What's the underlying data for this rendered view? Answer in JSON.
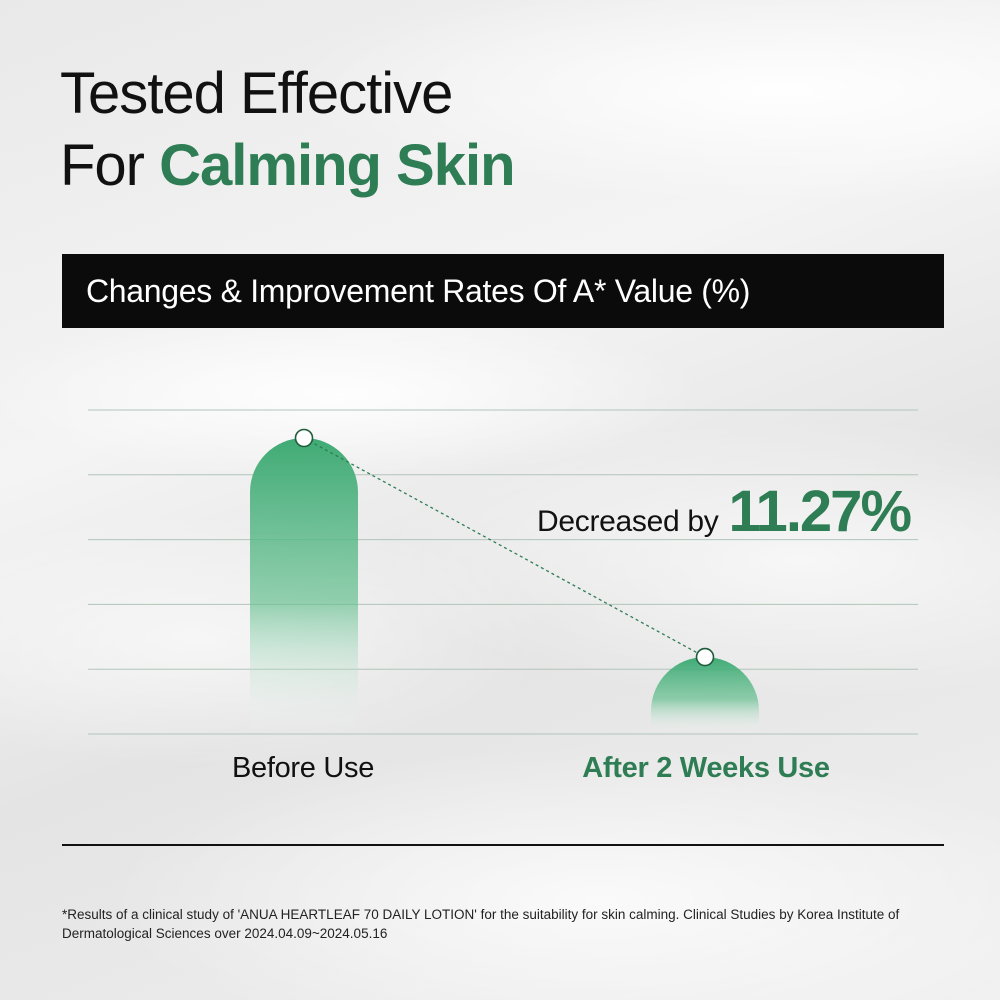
{
  "title": {
    "line1": "Tested Effective",
    "line2_prefix": "For ",
    "line2_accent": "Calming Skin"
  },
  "banner": "Changes & Improvement Rates Of A* Value (%)",
  "chart_data": {
    "type": "bar",
    "title": "Changes & Improvement Rates Of A* Value (%)",
    "categories": [
      "Before Use",
      "After 2 Weeks Use"
    ],
    "values": [
      100,
      26
    ],
    "ylim": [
      0,
      100
    ],
    "y_scale": "relative",
    "grid": true,
    "annotation": {
      "label": "Decreased by",
      "value": "11.27%"
    },
    "colors": {
      "bar": "#3faa74",
      "accent": "#2e7d54",
      "grid": "#b3c4ba"
    }
  },
  "footnote": "*Results of a clinical study of 'ANUA HEARTLEAF 70 DAILY LOTION' for the suitability for skin calming. Clinical Studies by Korea Institute of Dermatological Sciences over 2024.04.09~2024.05.16"
}
